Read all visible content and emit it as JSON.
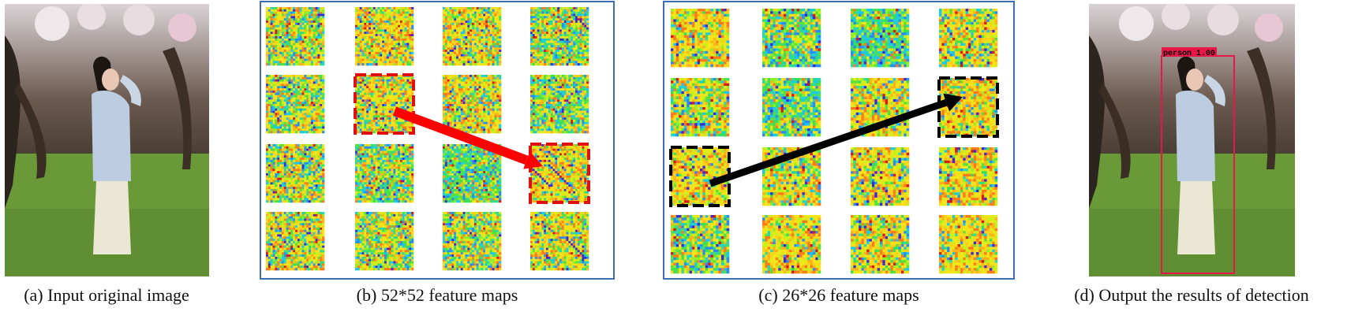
{
  "panels": [
    {
      "id": "a",
      "caption": "(a) Input original image"
    },
    {
      "id": "b",
      "caption": "(b) 52*52 feature maps"
    },
    {
      "id": "c",
      "caption": "(c) 26*26 feature maps"
    },
    {
      "id": "d",
      "caption": "(d) Output the results of detection"
    }
  ],
  "detection": {
    "label": "person 1.00",
    "box_color": "#e8174a"
  },
  "colors": {
    "frame": "#3f6db3",
    "arrow_b": "#ff0000",
    "arrow_c": "#000000",
    "highlight_b": "#e01010",
    "highlight_c": "#000000"
  }
}
